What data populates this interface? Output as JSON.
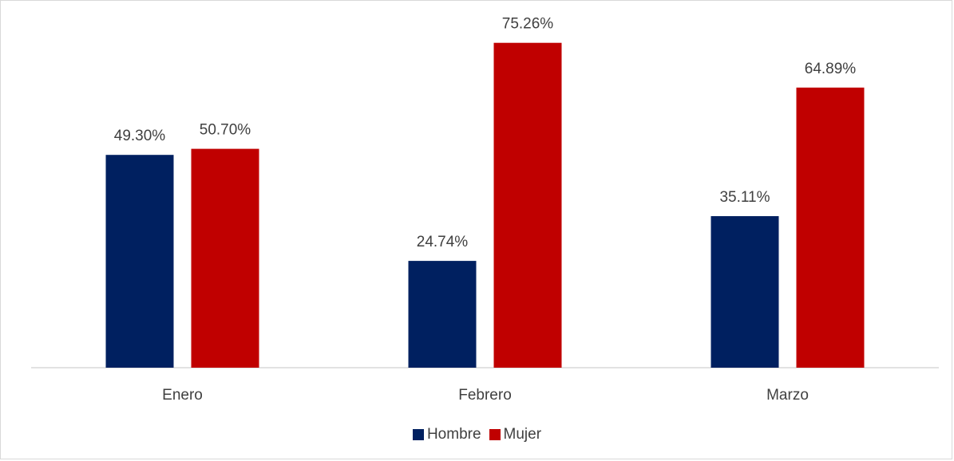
{
  "chart_data": {
    "type": "bar",
    "categories": [
      "Enero",
      "Febrero",
      "Marzo"
    ],
    "series": [
      {
        "name": "Hombre",
        "values": [
          49.3,
          24.74,
          35.11
        ],
        "labels": [
          "49.30%",
          "24.74%",
          "35.11%"
        ],
        "color": "#002060"
      },
      {
        "name": "Mujer",
        "values": [
          50.7,
          75.26,
          64.89
        ],
        "labels": [
          "50.70%",
          "75.26%",
          "64.89%"
        ],
        "color": "#C00000"
      }
    ],
    "title": "",
    "xlabel": "",
    "ylabel": "",
    "ylim": [
      0,
      85
    ],
    "grid": false,
    "legend": "bottom"
  }
}
